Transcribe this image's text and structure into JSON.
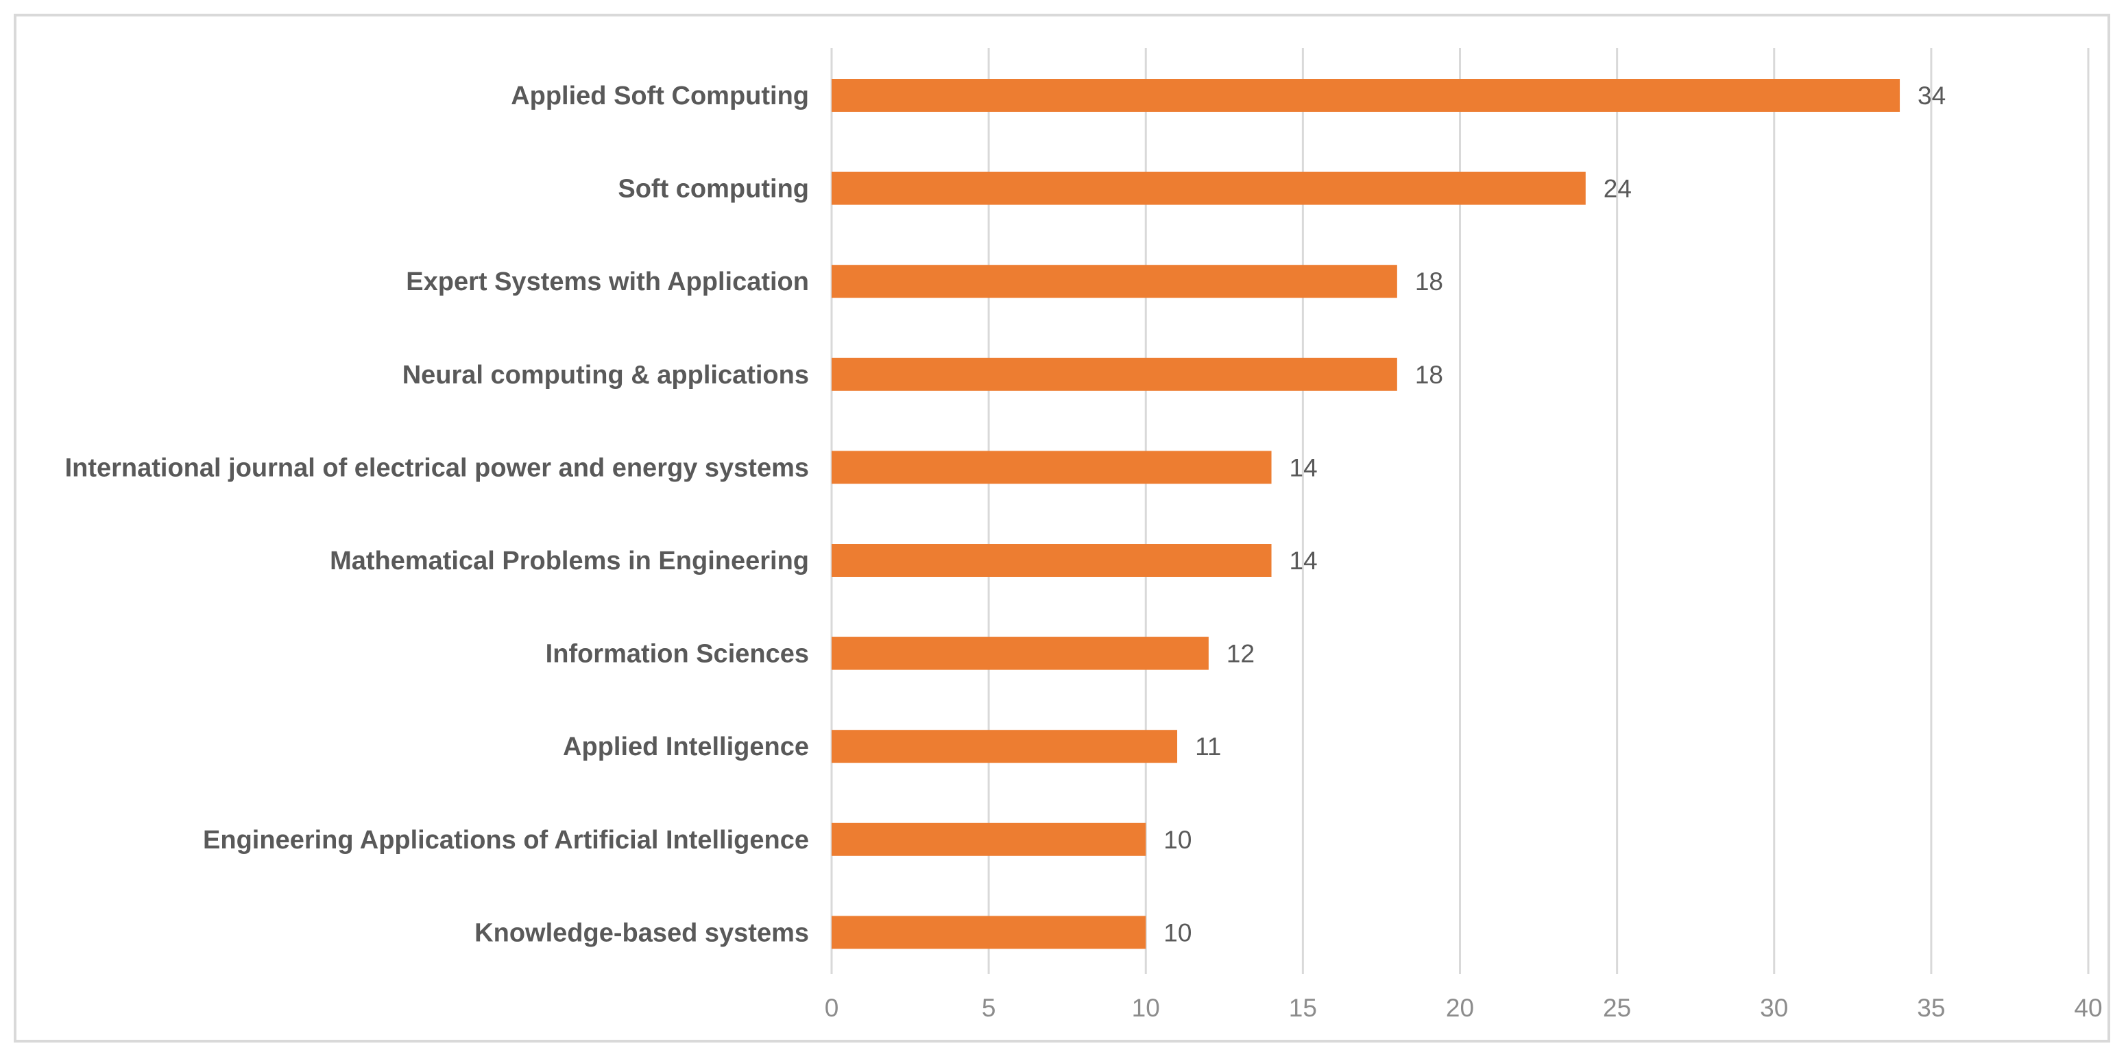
{
  "chart_data": {
    "type": "bar",
    "orientation": "horizontal",
    "title": "",
    "xlabel": "",
    "ylabel": "",
    "categories": [
      "Applied Soft Computing",
      "Soft computing",
      "Expert Systems with Application",
      "Neural computing & applications",
      "International journal of electrical power and energy systems",
      "Mathematical Problems in Engineering",
      "Information Sciences",
      "Applied Intelligence",
      "Engineering Applications of Artificial Intelligence",
      "Knowledge-based systems"
    ],
    "values": [
      34,
      24,
      18,
      18,
      14,
      14,
      12,
      11,
      10,
      10
    ],
    "data_labels": [
      "34",
      "24",
      "18",
      "18",
      "14",
      "14",
      "12",
      "11",
      "10",
      "10"
    ],
    "xlim": [
      0,
      40
    ],
    "x_ticks": [
      0,
      5,
      10,
      15,
      20,
      25,
      30,
      35,
      40
    ],
    "x_tick_labels": [
      "0",
      "5",
      "10",
      "15",
      "20",
      "25",
      "30",
      "35",
      "40"
    ],
    "grid": true,
    "legend": "none",
    "bar_color": "#ed7d31"
  }
}
